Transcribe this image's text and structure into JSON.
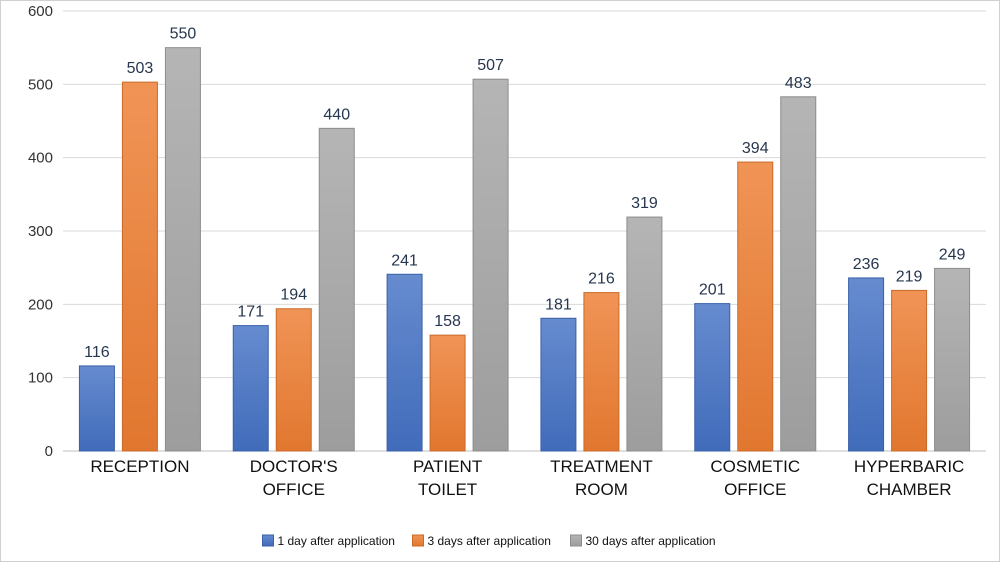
{
  "chart_data": {
    "type": "bar",
    "categories": [
      [
        "RECEPTION"
      ],
      [
        "DOCTOR'S",
        "OFFICE"
      ],
      [
        "PATIENT",
        "TOILET"
      ],
      [
        "TREATMENT",
        "ROOM"
      ],
      [
        "COSMETIC",
        "OFFICE"
      ],
      [
        "HYPERBARIC",
        "CHAMBER"
      ]
    ],
    "series": [
      {
        "name": "1 day after application",
        "color": "#4472c4",
        "values": [
          116,
          171,
          241,
          181,
          201,
          236
        ]
      },
      {
        "name": "3 days after application",
        "color": "#ed7d31",
        "values": [
          503,
          194,
          158,
          216,
          394,
          219
        ]
      },
      {
        "name": "30 days after application",
        "color": "#a5a5a5",
        "values": [
          550,
          440,
          507,
          319,
          483,
          249
        ]
      }
    ],
    "ylim": [
      0,
      600
    ],
    "yticks": [
      0,
      100,
      200,
      300,
      400,
      500,
      600
    ],
    "grid": true,
    "legend": "bottom-center"
  }
}
